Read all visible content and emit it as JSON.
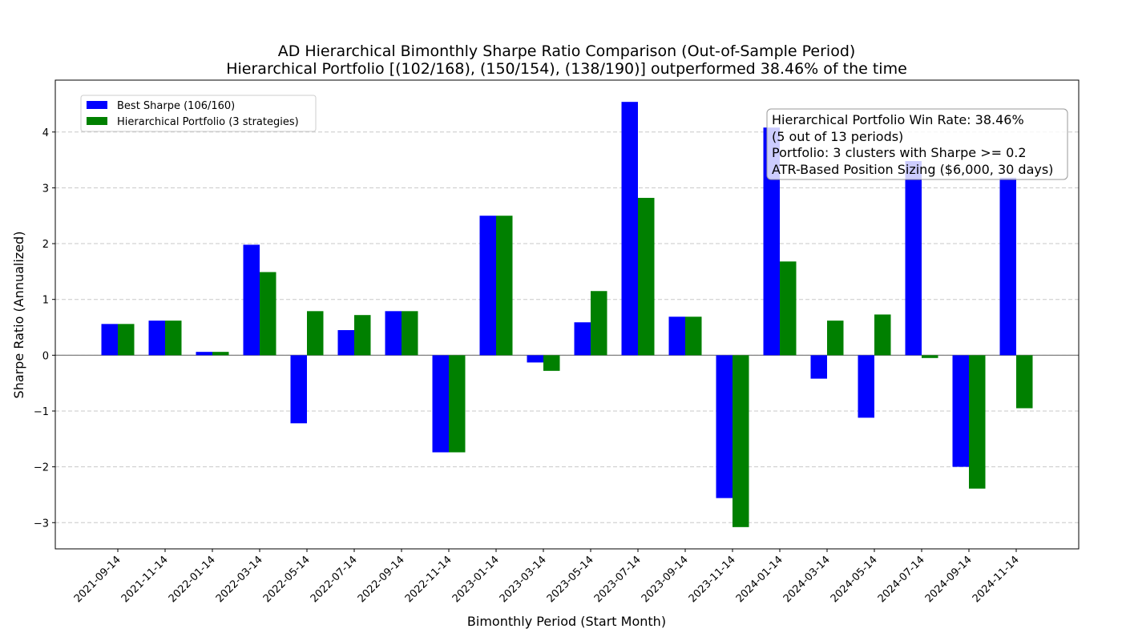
{
  "chart_data": {
    "type": "bar",
    "title": "AD Hierarchical Bimonthly Sharpe Ratio Comparison (Out-of-Sample Period)",
    "subtitle": "Hierarchical Portfolio [(102/168), (150/154), (138/190)] outperformed 38.46% of the time",
    "xlabel": "Bimonthly Period (Start Month)",
    "ylabel": "Sharpe Ratio (Annualized)",
    "ylim": [
      -3.47,
      4.93
    ],
    "yticks": [
      -3,
      -2,
      -1,
      0,
      1,
      2,
      3,
      4
    ],
    "ytick_labels": [
      "−3",
      "−2",
      "−1",
      "0",
      "1",
      "2",
      "3",
      "4"
    ],
    "grid": "horizontal dashed",
    "legend_position": "upper-left",
    "categories": [
      "2021-09-14",
      "2021-11-14",
      "2022-01-14",
      "2022-03-14",
      "2022-05-14",
      "2022-07-14",
      "2022-09-14",
      "2022-11-14",
      "2023-01-14",
      "2023-03-14",
      "2023-05-14",
      "2023-07-14",
      "2023-09-14",
      "2023-11-14",
      "2024-01-14",
      "2024-03-14",
      "2024-05-14",
      "2024-07-14",
      "2024-09-14",
      "2024-11-14"
    ],
    "series": [
      {
        "name": "Best Sharpe (106/160)",
        "color": "#0000ff",
        "values": [
          0.56,
          0.62,
          0.06,
          1.98,
          -1.22,
          0.45,
          0.79,
          -1.74,
          2.5,
          -0.13,
          0.59,
          4.54,
          0.69,
          -2.56,
          4.08,
          -0.42,
          -1.12,
          3.48,
          -2.0,
          3.18
        ]
      },
      {
        "name": "Hierarchical Portfolio (3 strategies)",
        "color": "#008000",
        "values": [
          0.56,
          0.62,
          0.06,
          1.49,
          0.79,
          0.72,
          0.79,
          -1.74,
          2.5,
          -0.28,
          1.15,
          2.82,
          0.69,
          -3.08,
          1.68,
          0.62,
          0.73,
          -0.05,
          -2.39,
          -0.95
        ]
      }
    ],
    "annotation": {
      "lines": [
        "Hierarchical Portfolio Win Rate: 38.46%",
        "(5 out of 13 periods)",
        "Portfolio: 3 clusters with Sharpe >= 0.2",
        "ATR-Based Position Sizing ($6,000, 30 days)"
      ],
      "position": "top-right"
    }
  }
}
